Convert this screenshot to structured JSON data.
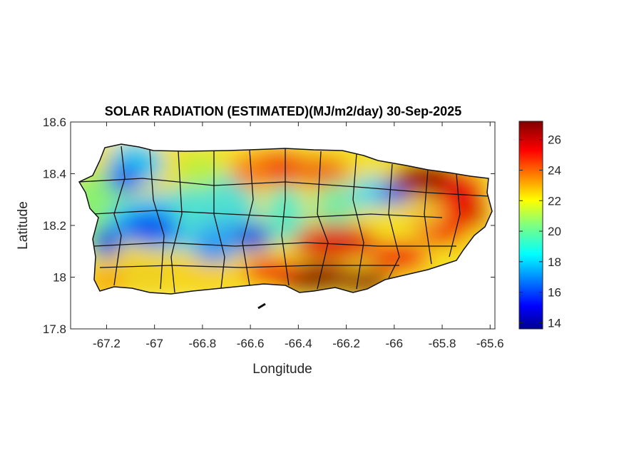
{
  "chart_data": {
    "type": "heatmap",
    "title": "SOLAR RADIATION (ESTIMATED)(MJ/m2/day) 30-Sep-2025",
    "xlabel": "Longitude",
    "ylabel": "Latitude",
    "xlim": [
      -67.35,
      -65.58
    ],
    "ylim": [
      17.8,
      18.6
    ],
    "xticks": [
      "-67.2",
      "-67",
      "-66.8",
      "-66.6",
      "-66.4",
      "-66.2",
      "-66",
      "-65.8",
      "-65.6"
    ],
    "xtick_values": [
      -67.2,
      -67,
      -66.8,
      -66.6,
      -66.4,
      -66.2,
      -66,
      -65.8,
      -65.6
    ],
    "yticks": [
      "17.8",
      "18",
      "18.2",
      "18.4",
      "18.6"
    ],
    "ytick_values": [
      17.8,
      18,
      18.2,
      18.4,
      18.6
    ],
    "colorbar": {
      "colormap": "jet",
      "range": [
        13.6,
        27.2
      ],
      "ticks": [
        "14",
        "16",
        "18",
        "20",
        "22",
        "24",
        "26"
      ],
      "tick_values": [
        14,
        16,
        18,
        20,
        22,
        24,
        26
      ],
      "colors": [
        "#00008f",
        "#0000ff",
        "#00ffff",
        "#ffff00",
        "#ff0000",
        "#800000"
      ]
    },
    "grid": false,
    "legend": "colorbar-right"
  }
}
